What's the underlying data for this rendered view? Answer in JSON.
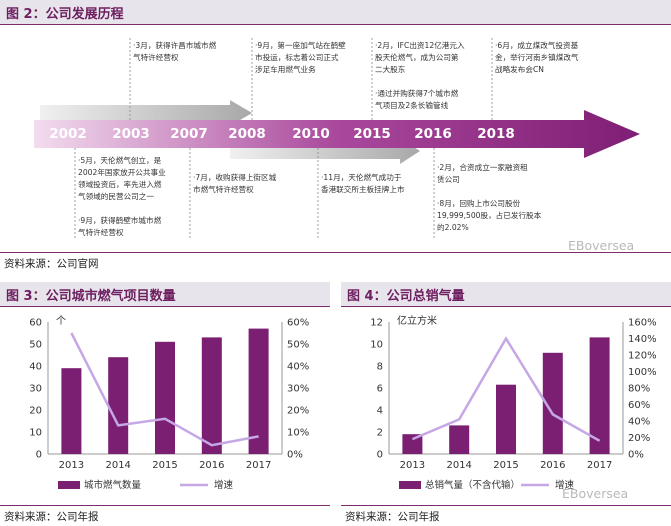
{
  "fig2": {
    "title": "图 2：公司发展历程",
    "source": "资料来源：公司官网",
    "watermark": "EBoversea",
    "years": [
      "2002",
      "2003",
      "2007",
      "2008",
      "2010",
      "2015",
      "2016",
      "2018"
    ],
    "top_notes": [
      "·3月，获得许昌市城市燃\n气特许经营权",
      "·9月，第一座加气站在鹤壁\n市投运，标志着公司正式\n涉足车用燃气业务",
      "·2月，IFC出资12亿港元入\n股天伦燃气，成为公司第\n二大股东\n\n·通过并购获得7个城市燃\n气项目及2条长输管线",
      "·6月，成立煤改气投资基\n金，举行河南乡镇煤改气\n战略发布会CN"
    ],
    "bottom_notes": [
      "·5月，天伦燃气创立，是\n2002年国家放开公共事业\n领域投资后，率先进入燃\n气领域的民营公司之一\n\n·9月，获得鹤壁市城市燃\n气特许经营权",
      "·7月，收购获得上街区城\n市燃气特许经营权",
      "·11月，天伦燃气成功于\n香港联交所主板挂牌上市",
      "·2月，合资成立一家融资租\n赁公司\n\n·8月，回购上市公司股份\n19,999,500股，占已发行股本\n的2.02%"
    ]
  },
  "fig3": {
    "title": "图 3：公司城市燃气项目数量",
    "source": "资料来源：公司年报",
    "unit_label": "个"
  },
  "fig4": {
    "title": "图 4：公司总销气量",
    "source": "资料来源：公司年报",
    "unit_label": "亿立方米",
    "watermark": "EBoversea"
  },
  "colors": {
    "bar": "#7a1f72",
    "line": "#c6a7e6",
    "header_text": "#6d1f5f"
  },
  "chart_data": [
    {
      "type": "bar",
      "title": "图 3：公司城市燃气项目数量",
      "categories": [
        "2013",
        "2014",
        "2015",
        "2016",
        "2017"
      ],
      "ylabel": "个",
      "ylim": [
        0,
        60
      ],
      "y_ticks": [
        0,
        10,
        20,
        30,
        40,
        50,
        60
      ],
      "y2lim": [
        0,
        60
      ],
      "y2_ticks": [
        "0%",
        "10%",
        "20%",
        "30%",
        "40%",
        "50%",
        "60%"
      ],
      "series": [
        {
          "name": "城市燃气数量",
          "type": "bar",
          "axis": "left",
          "values": [
            39,
            44,
            51,
            53,
            57
          ]
        },
        {
          "name": "增速",
          "type": "line",
          "axis": "right",
          "values": [
            55,
            13,
            16,
            4,
            8
          ]
        }
      ],
      "legend": "bottom"
    },
    {
      "type": "bar",
      "title": "图 4：公司总销气量",
      "categories": [
        "2013",
        "2014",
        "2015",
        "2016",
        "2017"
      ],
      "ylabel": "亿立方米",
      "ylim": [
        0,
        12
      ],
      "y_ticks": [
        0,
        2,
        4,
        6,
        8,
        10,
        12
      ],
      "y2lim": [
        0,
        160
      ],
      "y2_ticks": [
        "0%",
        "20%",
        "40%",
        "60%",
        "80%",
        "100%",
        "120%",
        "140%",
        "160%"
      ],
      "series": [
        {
          "name": "总销气量（不含代输）",
          "type": "bar",
          "axis": "left",
          "values": [
            1.8,
            2.6,
            6.3,
            9.2,
            10.6
          ]
        },
        {
          "name": "增速",
          "type": "line",
          "axis": "right",
          "values": [
            18,
            42,
            140,
            48,
            16
          ]
        }
      ],
      "legend": "bottom"
    }
  ]
}
